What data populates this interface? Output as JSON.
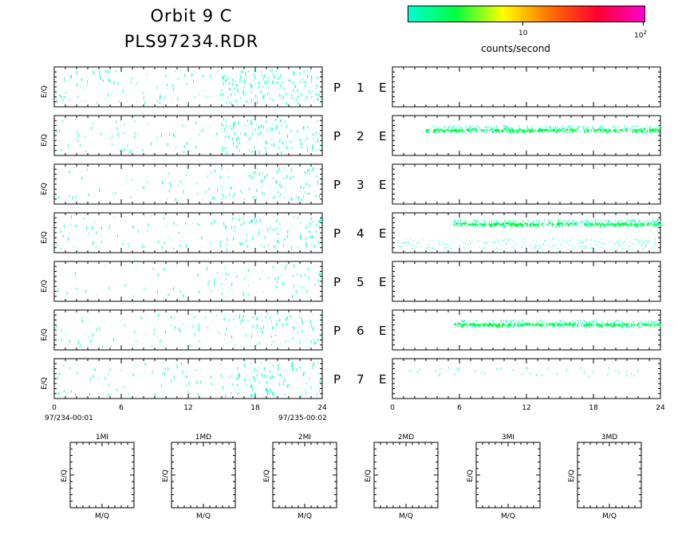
{
  "header": {
    "title_line1": "Orbit  9  C",
    "title_line2": "PLS97234.RDR"
  },
  "colorbar": {
    "label": "counts/second",
    "tick_10": "10",
    "tick_100": "10",
    "tick_100_exp": "2",
    "colors": [
      "#00ffd0",
      "#00ff40",
      "#ffff00",
      "#ff7000",
      "#ff0030",
      "#ff00d0"
    ]
  },
  "left_axis": {
    "ylabel": "E/Q",
    "ticks": [
      "0",
      "6",
      "12",
      "18",
      "24"
    ],
    "start_label": "97/234-00:01",
    "end_label": "97/235-00:02"
  },
  "right_axis": {
    "ticks": [
      "0",
      "6",
      "12",
      "18",
      "24"
    ]
  },
  "rows": [
    {
      "p": "P",
      "n": "1",
      "e": "E"
    },
    {
      "p": "P",
      "n": "2",
      "e": "E"
    },
    {
      "p": "P",
      "n": "3",
      "e": "E"
    },
    {
      "p": "P",
      "n": "4",
      "e": "E"
    },
    {
      "p": "P",
      "n": "5",
      "e": "E"
    },
    {
      "p": "P",
      "n": "6",
      "e": "E"
    },
    {
      "p": "P",
      "n": "7",
      "e": "E"
    }
  ],
  "small_panels": [
    {
      "title": "1MI",
      "ylabel": "E/Q",
      "xlabel": "M/Q"
    },
    {
      "title": "1MD",
      "ylabel": "E/Q",
      "xlabel": "M/Q"
    },
    {
      "title": "2MI",
      "ylabel": "E/Q",
      "xlabel": "M/Q"
    },
    {
      "title": "2MD",
      "ylabel": "E/Q",
      "xlabel": "M/Q"
    },
    {
      "title": "3MI",
      "ylabel": "E/Q",
      "xlabel": "M/Q"
    },
    {
      "title": "3MD",
      "ylabel": "E/Q",
      "xlabel": "M/Q"
    }
  ],
  "chart_data": {
    "type": "heatmap",
    "x_range": [
      0,
      24
    ],
    "x_ticks": [
      0,
      6,
      12,
      18,
      24
    ],
    "color_scale": "log",
    "color_range_label": [
      "10",
      "10^2"
    ],
    "left_panels_sparse_color": "#00ffd0",
    "right_panel_bands": [
      {
        "row": 2,
        "x_start": 3,
        "x_end": 24,
        "color": "#00ff40"
      },
      {
        "row": 4,
        "x_start": 5.5,
        "x_end": 24,
        "color": "#00ff40"
      },
      {
        "row": 6,
        "x_start": 5.5,
        "x_end": 24,
        "color": "#00ff40"
      }
    ]
  }
}
